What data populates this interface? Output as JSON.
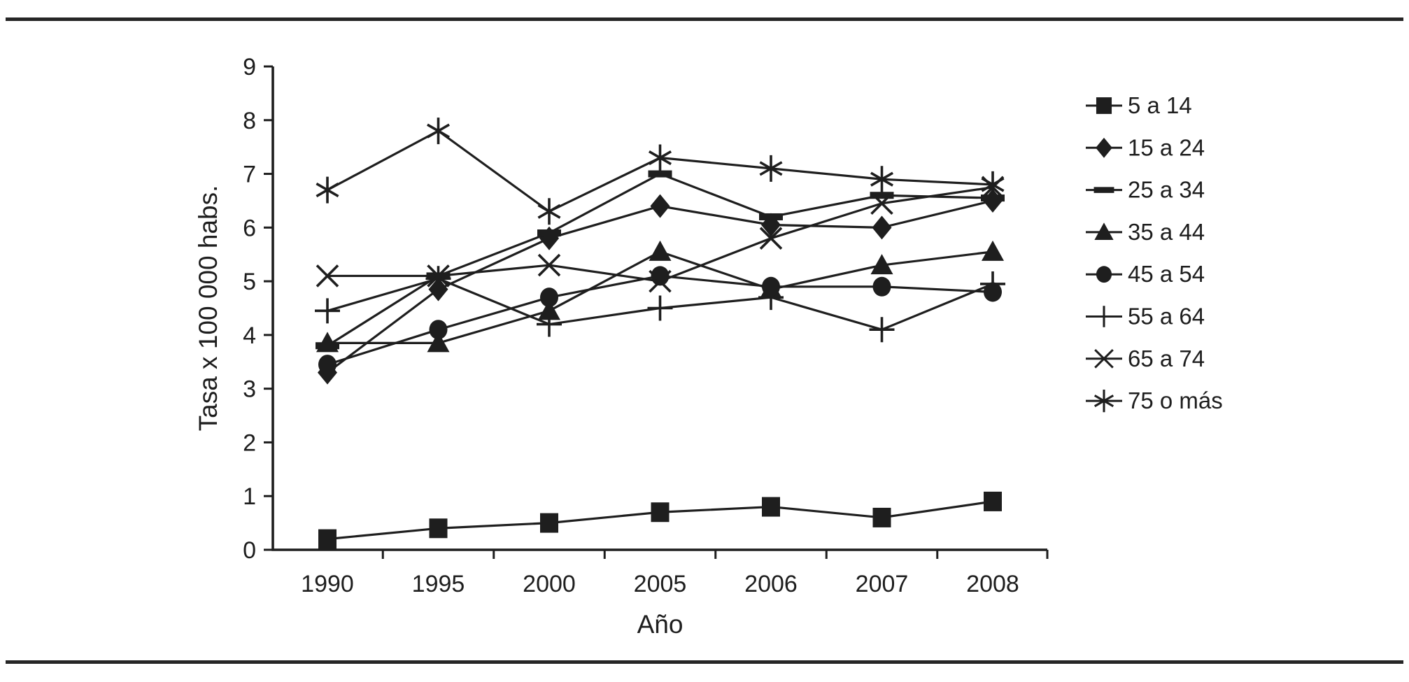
{
  "figure": {
    "background": "#ffffff",
    "ink_color": "#1e1e1e",
    "rule_color": "#262626"
  },
  "chart_data": {
    "type": "line",
    "xlabel": "Año",
    "ylabel": "Tasa x 100 000 habs.",
    "categories": [
      "1990",
      "1995",
      "2000",
      "2005",
      "2006",
      "2007",
      "2008"
    ],
    "ylim": [
      0,
      9
    ],
    "yticks": [
      0,
      1,
      2,
      3,
      4,
      5,
      6,
      7,
      8,
      9
    ],
    "grid": false,
    "legend_position": "right",
    "series": [
      {
        "name": "5 a 14",
        "marker": "square",
        "values": [
          0.2,
          0.4,
          0.5,
          0.7,
          0.8,
          0.6,
          0.9
        ]
      },
      {
        "name": "15 a 24",
        "marker": "diamond",
        "values": [
          3.3,
          4.85,
          5.8,
          6.4,
          6.05,
          6.0,
          6.5
        ]
      },
      {
        "name": "25 a 34",
        "marker": "dash",
        "values": [
          3.8,
          5.1,
          5.9,
          7.0,
          6.2,
          6.6,
          6.55
        ]
      },
      {
        "name": "35 a 44",
        "marker": "triangle",
        "values": [
          3.85,
          3.85,
          4.45,
          5.55,
          4.85,
          5.3,
          5.55
        ]
      },
      {
        "name": "45 a 54",
        "marker": "circle",
        "values": [
          3.45,
          4.1,
          4.7,
          5.1,
          4.9,
          4.9,
          4.8
        ]
      },
      {
        "name": "55 a 64",
        "marker": "plus",
        "values": [
          4.45,
          5.05,
          4.2,
          4.5,
          4.7,
          4.1,
          4.95
        ]
      },
      {
        "name": "65 a 74",
        "marker": "x",
        "values": [
          5.1,
          5.1,
          5.3,
          5.0,
          5.8,
          6.45,
          6.75
        ]
      },
      {
        "name": "75 o más",
        "marker": "star",
        "values": [
          6.7,
          7.8,
          6.3,
          7.3,
          7.1,
          6.9,
          6.8
        ]
      }
    ]
  }
}
